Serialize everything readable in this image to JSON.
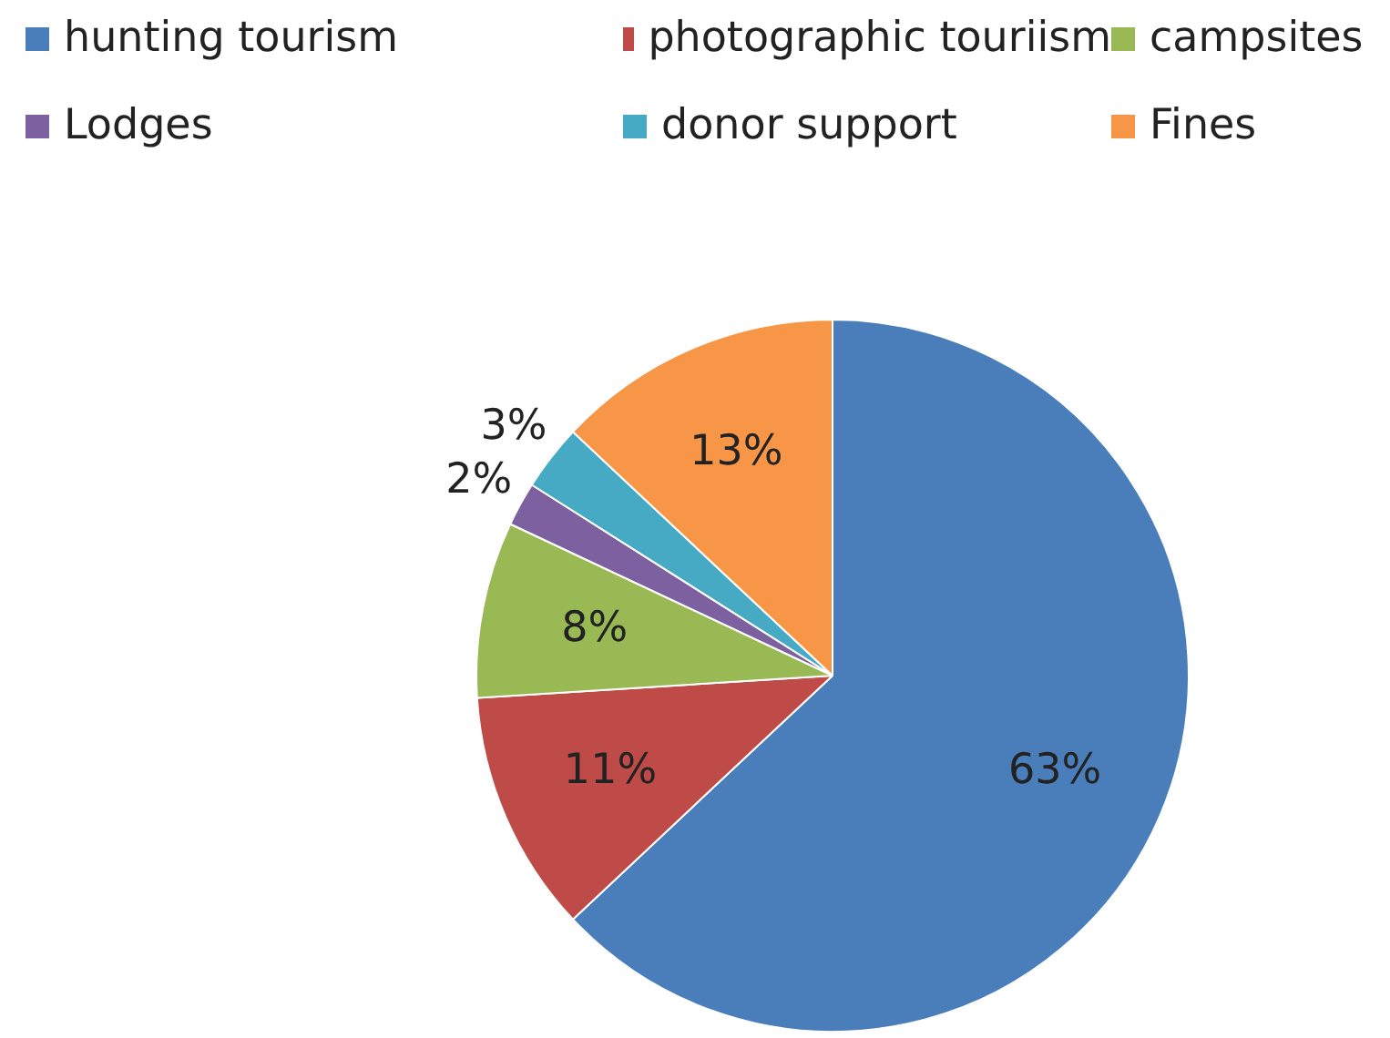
{
  "chart_data": {
    "type": "pie",
    "categories": [
      "hunting tourism",
      "photographic touriism",
      "campsites",
      "Lodges",
      "donor support",
      "Fines"
    ],
    "values": [
      63,
      11,
      8,
      2,
      3,
      13
    ],
    "colors": [
      "#4a7ebb",
      "#be4b48",
      "#98b954",
      "#7d60a0",
      "#46aac5",
      "#f79646"
    ],
    "value_labels": [
      "63%",
      "11%",
      "8%",
      "2%",
      "3%",
      "13%"
    ],
    "legend": "top"
  }
}
